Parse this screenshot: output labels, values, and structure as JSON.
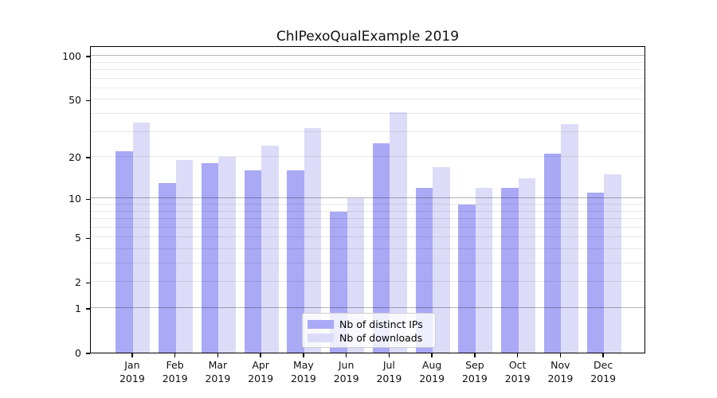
{
  "chart_data": {
    "type": "bar",
    "title": "ChIPexoQualExample 2019",
    "categories": [
      "Jan",
      "Feb",
      "Mar",
      "Apr",
      "May",
      "Jun",
      "Jul",
      "Aug",
      "Sep",
      "Oct",
      "Nov",
      "Dec"
    ],
    "category_year": "2019",
    "series": [
      {
        "name": "Nb of distinct IPs",
        "color": "#a9a9f6",
        "values": [
          22,
          13,
          18,
          16,
          16,
          8,
          25,
          12,
          9,
          12,
          21,
          11
        ]
      },
      {
        "name": "Nb of downloads",
        "color": "#dcdcf9",
        "values": [
          35,
          19,
          20,
          24,
          32,
          10,
          41,
          17,
          12,
          14,
          34,
          15
        ]
      }
    ],
    "xlabel": "",
    "ylabel": "",
    "yscale": "log1p",
    "ylim": [
      0,
      118
    ],
    "yticks": [
      0,
      1,
      2,
      5,
      10,
      20,
      50,
      100
    ],
    "major_gridlines": [
      1,
      10,
      100
    ],
    "minor_gridlines": [
      2,
      3,
      4,
      5,
      6,
      7,
      8,
      9,
      20,
      30,
      40,
      50,
      60,
      70,
      80,
      90
    ],
    "grid": true,
    "legend_position": "lower center"
  }
}
